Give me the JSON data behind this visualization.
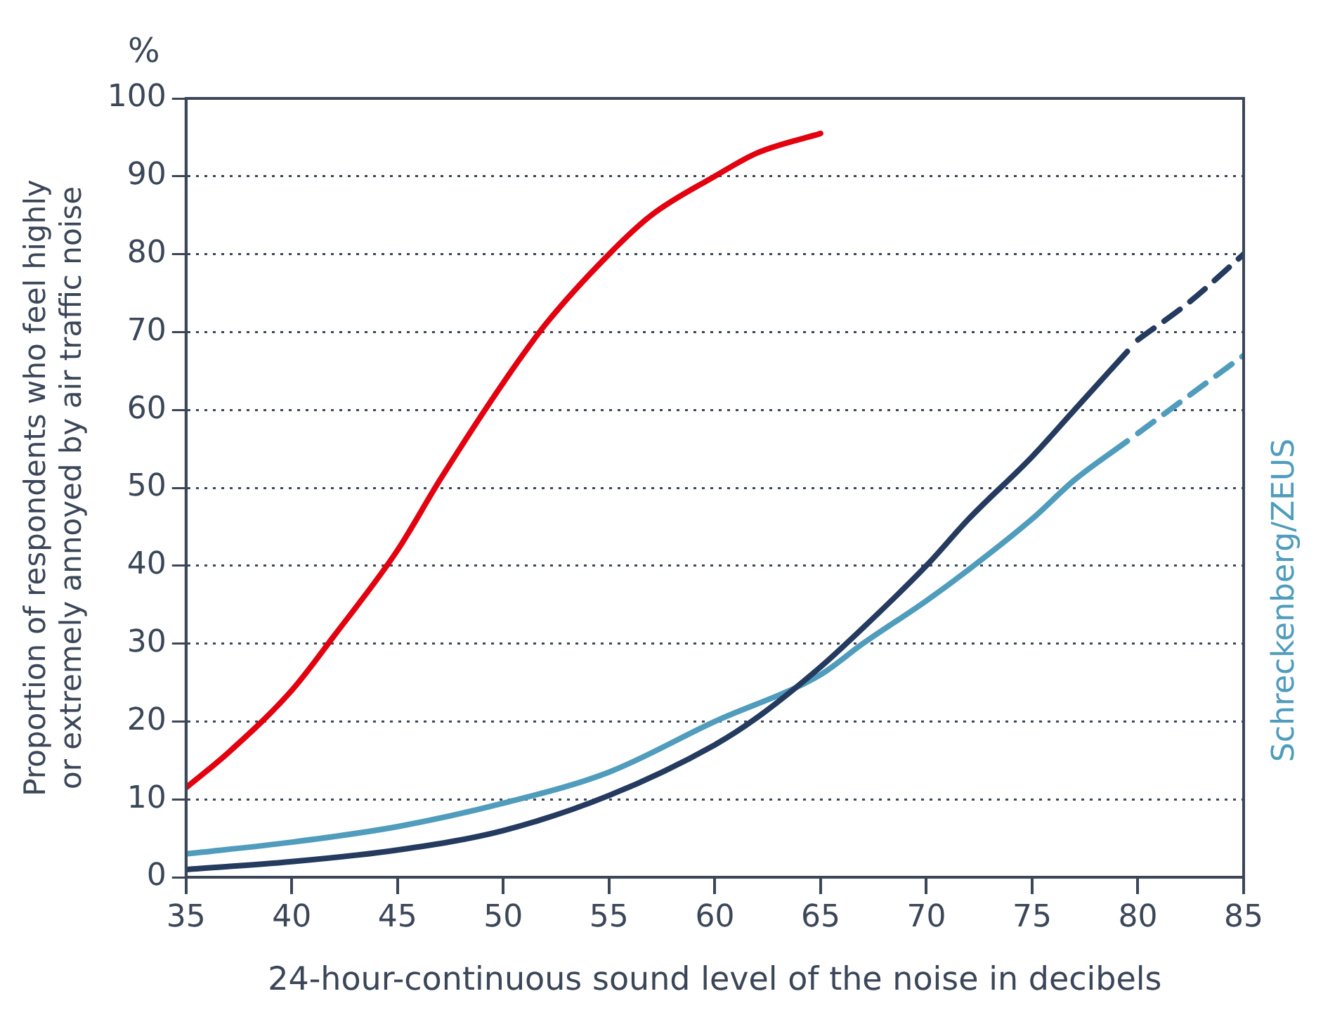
{
  "chart_data": {
    "type": "line",
    "xlabel": "24-hour-continuous sound level of the noise in decibels",
    "ylabel": "Proportion of respondents who feel highly\nor extremely annoyed by air traffic noise",
    "annotations": [
      "%"
    ],
    "xlim": [
      35,
      85
    ],
    "xticks": [
      35,
      40,
      45,
      50,
      55,
      60,
      65,
      70,
      75,
      80,
      85
    ],
    "ylim": [
      0,
      100
    ],
    "yticks": [
      0,
      10,
      20,
      30,
      40,
      50,
      60,
      70,
      80,
      90,
      100
    ],
    "grid": "y",
    "legend": false,
    "marker": "none",
    "line_style": "solid",
    "series": [
      {
        "color": "#e3000f",
        "x": [
          35,
          37,
          40,
          42,
          45,
          47,
          50,
          52,
          55,
          57,
          60,
          62,
          65
        ],
        "values": [
          11.5,
          16,
          24,
          31,
          42,
          51,
          63.5,
          71,
          80,
          85,
          90,
          93,
          95.5
        ]
      },
      {
        "color": "#243a5e",
        "x": [
          35,
          40,
          45,
          50,
          55,
          60,
          62,
          65,
          67,
          70,
          72,
          75,
          77,
          79.5
        ],
        "values": [
          1,
          2,
          3.5,
          6,
          10.5,
          17,
          20.5,
          27,
          32,
          40,
          46,
          54,
          60,
          67.5
        ]
      },
      {
        "color": "#243a5e",
        "x": [
          80,
          82.5,
          85
        ],
        "values": [
          69,
          74,
          80
        ],
        "line_style": "dashed"
      },
      {
        "name": "Schreckenberg/ZEUS",
        "color": "#4f9cbc",
        "x": [
          35,
          40,
          45,
          50,
          55,
          60,
          65,
          67,
          70,
          72,
          75,
          77,
          79.5
        ],
        "values": [
          3,
          4.5,
          6.5,
          9.5,
          13.5,
          20,
          26,
          30,
          35.5,
          39.5,
          46,
          51,
          56
        ]
      },
      {
        "color": "#4f9cbc",
        "x": [
          80,
          85
        ],
        "values": [
          57,
          67
        ],
        "line_style": "dashed"
      }
    ]
  }
}
